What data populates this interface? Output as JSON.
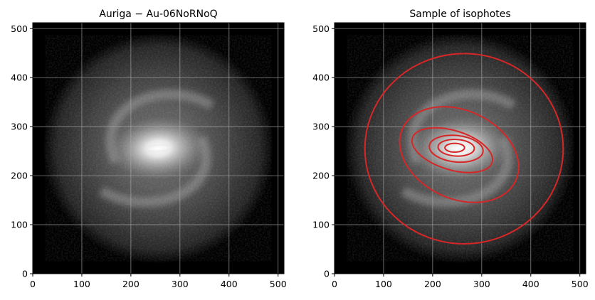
{
  "chart_data": [
    {
      "type": "heatmap",
      "title": "Auriga − Au-06NoRNoQ",
      "xlim": [
        0,
        512
      ],
      "ylim": [
        0,
        512
      ],
      "xticks": [
        0,
        100,
        200,
        300,
        400,
        500
      ],
      "yticks": [
        0,
        100,
        200,
        300,
        400,
        500
      ],
      "grid": true,
      "colormap": "gray",
      "galaxy": {
        "center": [
          256,
          256
        ],
        "disk_radius": 235,
        "bar_angle_deg": 4
      }
    },
    {
      "type": "heatmap",
      "title": "Sample of isophotes",
      "xlim": [
        0,
        512
      ],
      "ylim": [
        0,
        512
      ],
      "xticks": [
        0,
        100,
        200,
        300,
        400,
        500
      ],
      "yticks": [
        0,
        100,
        200,
        300,
        400,
        500
      ],
      "grid": true,
      "colormap": "gray",
      "galaxy": {
        "center": [
          256,
          256
        ],
        "disk_radius": 235,
        "bar_angle_deg": 4
      },
      "isophote_color": "#d62728",
      "isophotes": [
        {
          "cx": 245,
          "cy": 257,
          "a": 20,
          "b": 9,
          "angle_deg": 0
        },
        {
          "cx": 248,
          "cy": 257,
          "a": 37,
          "b": 17,
          "angle_deg": -3
        },
        {
          "cx": 248,
          "cy": 255,
          "a": 55,
          "b": 27,
          "angle_deg": -6
        },
        {
          "cx": 240,
          "cy": 252,
          "a": 85,
          "b": 40,
          "angle_deg": -17
        },
        {
          "cx": 254,
          "cy": 243,
          "a": 127,
          "b": 90,
          "angle_deg": -25
        },
        {
          "cx": 264,
          "cy": 255,
          "a": 202,
          "b": 194,
          "angle_deg": 0
        }
      ]
    }
  ]
}
